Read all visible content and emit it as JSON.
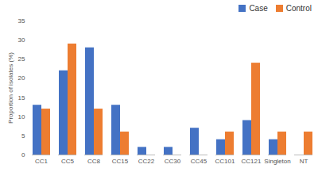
{
  "chart_data": {
    "type": "bar",
    "y_label": "Proportion of isolates (%)",
    "categories": [
      "CC1",
      "CC5",
      "CC8",
      "CC15",
      "CC22",
      "CC30",
      "CC45",
      "CC101",
      "CC121",
      "Singleton",
      "NT"
    ],
    "series": [
      {
        "name": "Case",
        "color": "#4472c4",
        "values": [
          13,
          22,
          28,
          13,
          2,
          2,
          7,
          4,
          9,
          4,
          0
        ]
      },
      {
        "name": "Control",
        "color": "#ed7d31",
        "values": [
          12,
          29,
          12,
          6,
          0,
          0,
          0,
          6,
          24,
          6,
          6
        ]
      }
    ],
    "ylim": [
      0,
      35
    ],
    "yticks": [
      0,
      5,
      10,
      15,
      20,
      25,
      30,
      35
    ],
    "grid": false,
    "legend": "top-right"
  }
}
